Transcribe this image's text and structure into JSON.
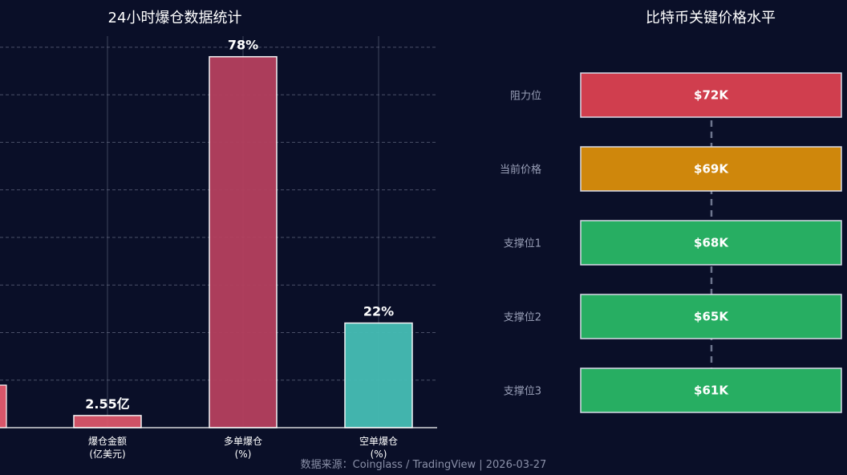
{
  "colors": {
    "background": "#0a0f28",
    "amount": "#d9566a",
    "long": "#b5405e",
    "short": "#45bdb5",
    "resistance": "#d03e4e",
    "current": "#cf870c",
    "support": "#27ae62",
    "grid": "#4a5068",
    "dashed_line": "#8890a8"
  },
  "chart_data": [
    {
      "type": "bar",
      "title": "24小时爆仓数据统计",
      "categories": [
        {
          "line1": "爆仓金额",
          "line2": "(亿美元)"
        },
        {
          "line1": "多单爆仓",
          "line2": "(%)"
        },
        {
          "line1": "空单爆仓",
          "line2": "(%)"
        }
      ],
      "values": [
        2.55,
        78,
        22
      ],
      "data_labels": [
        "2.55亿",
        "78%",
        "22%"
      ],
      "ylim": [
        0,
        82
      ],
      "grid": "y-dashed"
    },
    {
      "type": "bar",
      "orientation": "horizontal",
      "title": "比特币关键价格水平",
      "levels": [
        {
          "name": "阻力位",
          "label": "$72K",
          "value": 72,
          "kind": "resistance"
        },
        {
          "name": "当前价格",
          "label": "$69K",
          "value": 69,
          "kind": "current"
        },
        {
          "name": "支撑位1",
          "label": "$68K",
          "value": 68,
          "kind": "support"
        },
        {
          "name": "支撑位2",
          "label": "$65K",
          "value": 65,
          "kind": "support"
        },
        {
          "name": "支撑位3",
          "label": "$61K",
          "value": 61,
          "kind": "support"
        }
      ]
    }
  ],
  "footer": "数据来源：Coinglass / TradingView | 2026-03-27"
}
